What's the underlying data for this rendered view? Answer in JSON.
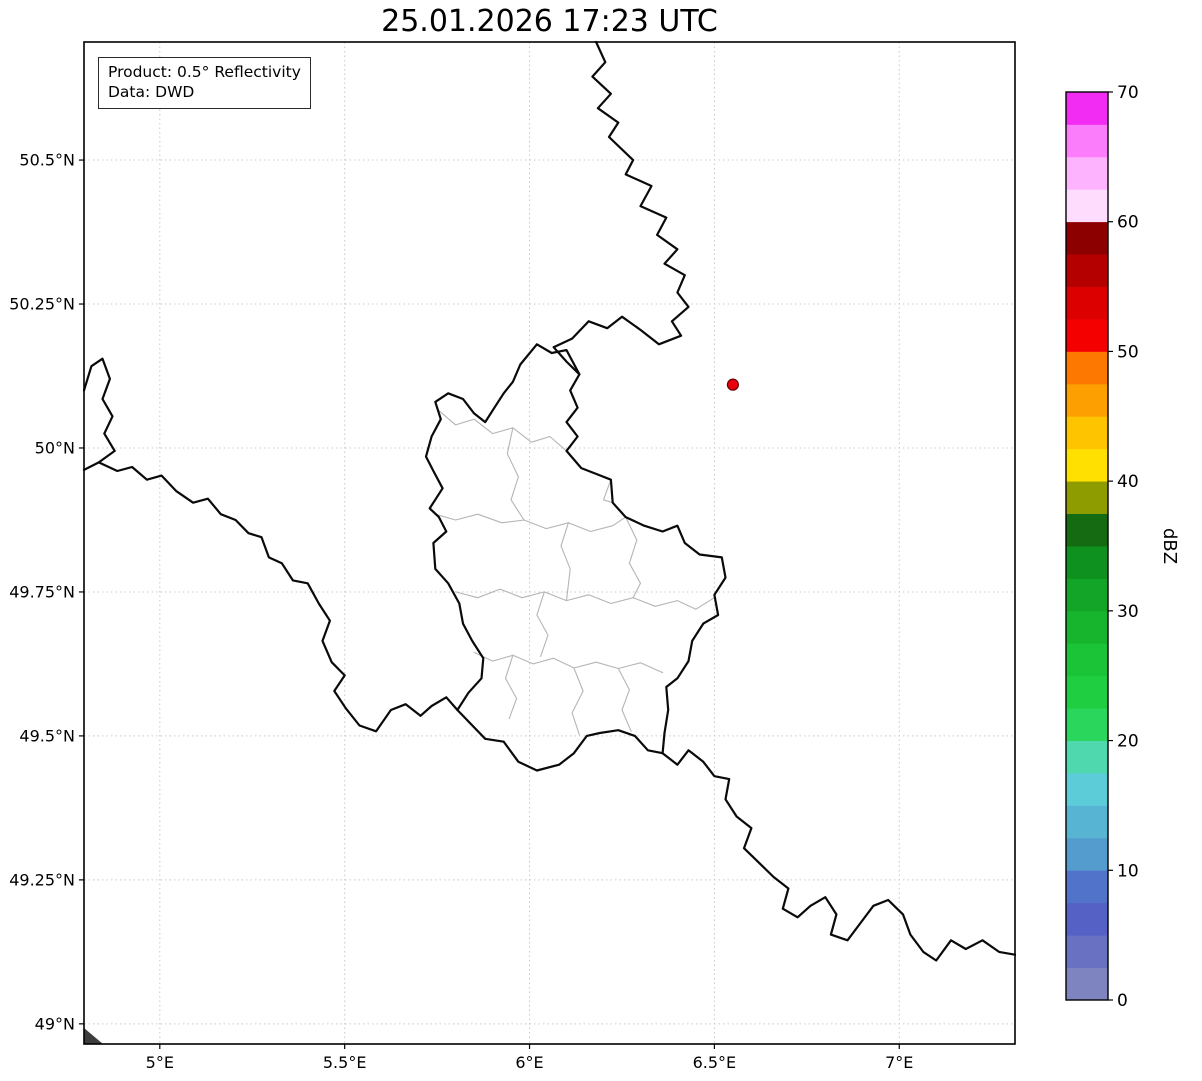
{
  "title": "25.01.2026 17:23 UTC",
  "info_box": {
    "line1": "Product: 0.5° Reflectivity",
    "line2": "Data: DWD"
  },
  "colorbar": {
    "label": "dBZ",
    "unit_min": 0,
    "unit_max": 70,
    "ticks": [
      0,
      10,
      20,
      30,
      40,
      50,
      60,
      70
    ],
    "colors_bottom_to_top": [
      "#7d84bf",
      "#6972c2",
      "#5661c6",
      "#5173c9",
      "#549ccd",
      "#57b5d3",
      "#5cccd8",
      "#4fd8ae",
      "#2ad65c",
      "#1fce41",
      "#1bc336",
      "#17b52e",
      "#13a527",
      "#0f9120",
      "#146b12",
      "#8f9c00",
      "#ffe000",
      "#fec400",
      "#fd9f00",
      "#fc7800",
      "#f40000",
      "#dc0000",
      "#b50000",
      "#8d0000",
      "#fedcfe",
      "#feb3fe",
      "#fc7dfc",
      "#f32cf3"
    ]
  },
  "map": {
    "extent": {
      "lon_min": 4.795,
      "lon_max": 7.313,
      "lat_min": 48.965,
      "lat_max": 50.705
    },
    "x_ticks": [
      {
        "value": 5.0,
        "label": "5°E"
      },
      {
        "value": 5.5,
        "label": "5.5°E"
      },
      {
        "value": 6.0,
        "label": "6°E"
      },
      {
        "value": 6.5,
        "label": "6.5°E"
      },
      {
        "value": 7.0,
        "label": "7°E"
      }
    ],
    "y_ticks": [
      {
        "value": 50.5,
        "label": "50.5°N"
      },
      {
        "value": 50.25,
        "label": "50.25°N"
      },
      {
        "value": 50.0,
        "label": "50°N"
      },
      {
        "value": 49.75,
        "label": "49.75°N"
      },
      {
        "value": 49.5,
        "label": "49.5°N"
      },
      {
        "value": 49.25,
        "label": "49.25°N"
      },
      {
        "value": 49.0,
        "label": "49°N"
      }
    ],
    "grid_color": "#c9c9c9",
    "border_color": "#0a0a0a",
    "canton_color": "#b5b5b5",
    "radar_marker": {
      "lon": 6.55,
      "lat": 50.11,
      "color": "#e8000d"
    },
    "borders": {
      "belgium_germany": [
        [
          6.18,
          50.705
        ],
        [
          6.205,
          50.67
        ],
        [
          6.17,
          50.645
        ],
        [
          6.22,
          50.615
        ],
        [
          6.185,
          50.59
        ],
        [
          6.24,
          50.565
        ],
        [
          6.215,
          50.54
        ],
        [
          6.28,
          50.5
        ],
        [
          6.26,
          50.475
        ],
        [
          6.33,
          50.455
        ],
        [
          6.3,
          50.42
        ],
        [
          6.37,
          50.4
        ],
        [
          6.345,
          50.37
        ],
        [
          6.4,
          50.345
        ],
        [
          6.365,
          50.32
        ],
        [
          6.42,
          50.3
        ],
        [
          6.4,
          50.27
        ],
        [
          6.43,
          50.245
        ],
        [
          6.385,
          50.22
        ],
        [
          6.41,
          50.195
        ],
        [
          6.35,
          50.18
        ],
        [
          6.3,
          50.205
        ],
        [
          6.25,
          50.228
        ],
        [
          6.21,
          50.208
        ],
        [
          6.16,
          50.22
        ],
        [
          6.115,
          50.19
        ],
        [
          6.065,
          50.175
        ],
        [
          6.1,
          50.15
        ],
        [
          6.135,
          50.128
        ]
      ],
      "luxembourg": [
        [
          6.02,
          50.18
        ],
        [
          6.06,
          50.165
        ],
        [
          6.1,
          50.17
        ],
        [
          6.135,
          50.128
        ],
        [
          6.11,
          50.1
        ],
        [
          6.13,
          50.07
        ],
        [
          6.1,
          50.045
        ],
        [
          6.13,
          50.02
        ],
        [
          6.1,
          49.995
        ],
        [
          6.14,
          49.965
        ],
        [
          6.18,
          49.955
        ],
        [
          6.22,
          49.945
        ],
        [
          6.225,
          49.905
        ],
        [
          6.26,
          49.88
        ],
        [
          6.31,
          49.865
        ],
        [
          6.36,
          49.855
        ],
        [
          6.4,
          49.865
        ],
        [
          6.42,
          49.835
        ],
        [
          6.46,
          49.815
        ],
        [
          6.52,
          49.81
        ],
        [
          6.53,
          49.775
        ],
        [
          6.5,
          49.745
        ],
        [
          6.51,
          49.71
        ],
        [
          6.47,
          49.695
        ],
        [
          6.44,
          49.665
        ],
        [
          6.43,
          49.63
        ],
        [
          6.4,
          49.6
        ],
        [
          6.37,
          49.585
        ],
        [
          6.375,
          49.545
        ],
        [
          6.365,
          49.505
        ],
        [
          6.36,
          49.47
        ],
        [
          6.32,
          49.475
        ],
        [
          6.285,
          49.5
        ],
        [
          6.24,
          49.51
        ],
        [
          6.19,
          49.505
        ],
        [
          6.155,
          49.5
        ],
        [
          6.12,
          49.47
        ],
        [
          6.08,
          49.45
        ],
        [
          6.02,
          49.44
        ],
        [
          5.97,
          49.455
        ],
        [
          5.93,
          49.49
        ],
        [
          5.88,
          49.495
        ],
        [
          5.835,
          49.525
        ],
        [
          5.805,
          49.545
        ],
        [
          5.835,
          49.575
        ],
        [
          5.87,
          49.6
        ],
        [
          5.875,
          49.635
        ],
        [
          5.845,
          49.665
        ],
        [
          5.82,
          49.695
        ],
        [
          5.81,
          49.73
        ],
        [
          5.78,
          49.765
        ],
        [
          5.745,
          49.79
        ],
        [
          5.74,
          49.835
        ],
        [
          5.775,
          49.855
        ],
        [
          5.755,
          49.88
        ],
        [
          5.73,
          49.895
        ],
        [
          5.765,
          49.93
        ],
        [
          5.74,
          49.96
        ],
        [
          5.72,
          49.985
        ],
        [
          5.735,
          50.02
        ],
        [
          5.76,
          50.05
        ],
        [
          5.745,
          50.08
        ],
        [
          5.78,
          50.095
        ],
        [
          5.82,
          50.085
        ],
        [
          5.85,
          50.06
        ],
        [
          5.88,
          50.045
        ],
        [
          5.905,
          50.07
        ],
        [
          5.93,
          50.095
        ],
        [
          5.955,
          50.115
        ],
        [
          5.975,
          50.145
        ]
      ],
      "france_belgium_givet": [
        [
          4.795,
          50.1
        ],
        [
          4.815,
          50.142
        ],
        [
          4.845,
          50.155
        ],
        [
          4.865,
          50.12
        ],
        [
          4.845,
          50.085
        ],
        [
          4.872,
          50.055
        ],
        [
          4.85,
          50.025
        ],
        [
          4.878,
          49.995
        ],
        [
          4.835,
          49.975
        ],
        [
          4.795,
          49.962
        ]
      ],
      "france_belgium": [
        [
          4.835,
          49.975
        ],
        [
          4.885,
          49.96
        ],
        [
          4.925,
          49.967
        ],
        [
          4.965,
          49.945
        ],
        [
          5.005,
          49.952
        ],
        [
          5.045,
          49.925
        ],
        [
          5.09,
          49.905
        ],
        [
          5.13,
          49.912
        ],
        [
          5.165,
          49.885
        ],
        [
          5.205,
          49.875
        ],
        [
          5.24,
          49.852
        ],
        [
          5.275,
          49.845
        ],
        [
          5.295,
          49.81
        ],
        [
          5.33,
          49.8
        ],
        [
          5.36,
          49.77
        ],
        [
          5.4,
          49.765
        ],
        [
          5.43,
          49.73
        ],
        [
          5.46,
          49.7
        ],
        [
          5.44,
          49.665
        ],
        [
          5.465,
          49.628
        ],
        [
          5.5,
          49.605
        ],
        [
          5.472,
          49.578
        ],
        [
          5.503,
          49.548
        ],
        [
          5.54,
          49.518
        ],
        [
          5.585,
          49.508
        ],
        [
          5.625,
          49.545
        ],
        [
          5.665,
          49.555
        ],
        [
          5.705,
          49.535
        ],
        [
          5.735,
          49.552
        ],
        [
          5.775,
          49.567
        ],
        [
          5.805,
          49.545
        ]
      ],
      "france_germany": [
        [
          6.36,
          49.47
        ],
        [
          6.4,
          49.45
        ],
        [
          6.43,
          49.475
        ],
        [
          6.47,
          49.455
        ],
        [
          6.5,
          49.43
        ],
        [
          6.54,
          49.425
        ],
        [
          6.53,
          49.39
        ],
        [
          6.56,
          49.36
        ],
        [
          6.6,
          49.34
        ],
        [
          6.58,
          49.305
        ],
        [
          6.62,
          49.28
        ],
        [
          6.66,
          49.255
        ],
        [
          6.7,
          49.235
        ],
        [
          6.685,
          49.2
        ],
        [
          6.725,
          49.185
        ],
        [
          6.76,
          49.205
        ],
        [
          6.8,
          49.22
        ],
        [
          6.83,
          49.19
        ],
        [
          6.815,
          49.155
        ],
        [
          6.86,
          49.145
        ],
        [
          6.895,
          49.175
        ],
        [
          6.93,
          49.205
        ],
        [
          6.97,
          49.215
        ],
        [
          7.01,
          49.19
        ],
        [
          7.03,
          49.155
        ],
        [
          7.065,
          49.125
        ],
        [
          7.1,
          49.11
        ],
        [
          7.14,
          49.145
        ],
        [
          7.18,
          49.13
        ],
        [
          7.225,
          49.145
        ],
        [
          7.27,
          49.125
        ],
        [
          7.313,
          49.12
        ]
      ]
    },
    "canton_borders": [
      [
        [
          5.755,
          50.065
        ],
        [
          5.8,
          50.04
        ],
        [
          5.85,
          50.05
        ],
        [
          5.9,
          50.025
        ],
        [
          5.955,
          50.035
        ],
        [
          6.005,
          50.01
        ],
        [
          6.055,
          50.02
        ],
        [
          6.1,
          49.995
        ]
      ],
      [
        [
          5.955,
          50.035
        ],
        [
          5.94,
          49.99
        ],
        [
          5.97,
          49.95
        ],
        [
          5.95,
          49.91
        ],
        [
          5.985,
          49.875
        ]
      ],
      [
        [
          5.745,
          49.885
        ],
        [
          5.8,
          49.875
        ],
        [
          5.86,
          49.885
        ],
        [
          5.925,
          49.87
        ],
        [
          5.985,
          49.875
        ],
        [
          6.045,
          49.86
        ],
        [
          6.105,
          49.87
        ],
        [
          6.165,
          49.855
        ],
        [
          6.225,
          49.865
        ],
        [
          6.26,
          49.88
        ]
      ],
      [
        [
          5.8,
          49.75
        ],
        [
          5.86,
          49.74
        ],
        [
          5.92,
          49.755
        ],
        [
          5.98,
          49.74
        ],
        [
          6.04,
          49.75
        ],
        [
          6.1,
          49.735
        ],
        [
          6.16,
          49.745
        ],
        [
          6.22,
          49.73
        ],
        [
          6.28,
          49.74
        ],
        [
          6.34,
          49.725
        ],
        [
          6.4,
          49.735
        ],
        [
          6.45,
          49.72
        ],
        [
          6.5,
          49.74
        ]
      ],
      [
        [
          6.105,
          49.87
        ],
        [
          6.085,
          49.83
        ],
        [
          6.11,
          49.79
        ],
        [
          6.1,
          49.735
        ]
      ],
      [
        [
          6.26,
          49.88
        ],
        [
          6.29,
          49.84
        ],
        [
          6.27,
          49.8
        ],
        [
          6.3,
          49.765
        ],
        [
          6.28,
          49.74
        ]
      ],
      [
        [
          5.85,
          49.645
        ],
        [
          5.9,
          49.63
        ],
        [
          5.955,
          49.64
        ],
        [
          6.01,
          49.625
        ],
        [
          6.065,
          49.635
        ],
        [
          6.12,
          49.618
        ],
        [
          6.18,
          49.628
        ],
        [
          6.24,
          49.617
        ],
        [
          6.3,
          49.627
        ],
        [
          6.36,
          49.61
        ]
      ],
      [
        [
          5.955,
          49.64
        ],
        [
          5.935,
          49.6
        ],
        [
          5.965,
          49.565
        ],
        [
          5.945,
          49.53
        ]
      ],
      [
        [
          6.12,
          49.618
        ],
        [
          6.145,
          49.578
        ],
        [
          6.115,
          49.54
        ],
        [
          6.135,
          49.502
        ]
      ],
      [
        [
          6.24,
          49.617
        ],
        [
          6.27,
          49.58
        ],
        [
          6.25,
          49.545
        ],
        [
          6.275,
          49.508
        ]
      ],
      [
        [
          6.04,
          49.75
        ],
        [
          6.02,
          49.71
        ],
        [
          6.05,
          49.675
        ],
        [
          6.03,
          49.638
        ]
      ],
      [
        [
          6.22,
          49.945
        ],
        [
          6.2,
          49.91
        ],
        [
          6.225,
          49.905
        ]
      ]
    ]
  }
}
